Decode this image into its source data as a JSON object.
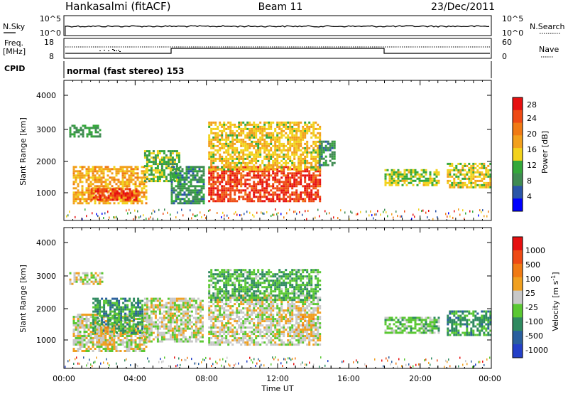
{
  "header": {
    "station": "Hankasalmi (fitACF)",
    "beam": "Beam 11",
    "date": "23/Dec/2011"
  },
  "aux_panels": {
    "nsky_label": "N.Sky",
    "nsky_ticks": [
      "10^5",
      "10^0"
    ],
    "nsearch_label": "N.Search",
    "nsearch_ticks": [
      "10^5",
      "10^0"
    ],
    "freq_label_1": "Freq.",
    "freq_label_2": "[MHz]",
    "freq_ticks": [
      "18",
      "8"
    ],
    "nave_label": "Nave",
    "nave_ticks": [
      "60",
      "0"
    ],
    "cpid_label": "CPID",
    "cpid_value": "normal (fast stereo) 153"
  },
  "power_panel": {
    "ylabel": "Slant Range [km]",
    "yticks": [
      "4000",
      "3000",
      "2000",
      "1000"
    ],
    "colorbar_label": "Power [dB]",
    "colorbar_ticks": [
      "28",
      "24",
      "20",
      "16",
      "12",
      "8",
      "4"
    ],
    "colors": [
      "#0000ff",
      "#2a55a8",
      "#3f8b52",
      "#34a83a",
      "#f2d21c",
      "#f2a01c",
      "#f07a14",
      "#ee4a14",
      "#e61010"
    ]
  },
  "velocity_panel": {
    "ylabel": "Slant Range [km]",
    "yticks": [
      "4000",
      "3000",
      "2000",
      "1000"
    ],
    "colorbar_label": "Velocity [m s^-1]",
    "colorbar_ticks": [
      "1000",
      "500",
      "100",
      "25",
      "-25",
      "-100",
      "-500",
      "-1000"
    ],
    "colors": [
      "#2440c8",
      "#2a5f9e",
      "#2f8a60",
      "#5ac832",
      "#c8c8c8",
      "#f0a020",
      "#f07a14",
      "#ee4a14",
      "#e61010"
    ]
  },
  "xaxis": {
    "label": "Time UT",
    "ticks": [
      "00:00",
      "04:00",
      "08:00",
      "12:00",
      "16:00",
      "20:00",
      "00:00"
    ]
  },
  "chart_data": [
    {
      "type": "heatmap",
      "title": "Power [dB]",
      "xlabel": "Time UT",
      "ylabel": "Slant Range [km]",
      "xlim": [
        0,
        24
      ],
      "ylim": [
        180,
        4600
      ],
      "color_scale": [
        0,
        30
      ],
      "echo_regions": [
        {
          "t": [
            0.5,
            4.6
          ],
          "range": [
            700,
            1900
          ],
          "value": 18
        },
        {
          "t": [
            1.5,
            4.2
          ],
          "range": [
            800,
            1200
          ],
          "value": 26
        },
        {
          "t": [
            0.3,
            2.0
          ],
          "range": [
            2800,
            3200
          ],
          "value": 10
        },
        {
          "t": [
            4.5,
            6.5
          ],
          "range": [
            1400,
            2400
          ],
          "value": 12
        },
        {
          "t": [
            6.0,
            7.8
          ],
          "range": [
            700,
            1900
          ],
          "value": 9
        },
        {
          "t": [
            8.1,
            14.4
          ],
          "range": [
            800,
            1900
          ],
          "value": 26
        },
        {
          "t": [
            8.1,
            14.4
          ],
          "range": [
            1800,
            3300
          ],
          "value": 16
        },
        {
          "t": [
            14.3,
            15.2
          ],
          "range": [
            1900,
            2700
          ],
          "value": 9
        },
        {
          "t": [
            18.0,
            21.0
          ],
          "range": [
            1300,
            1800
          ],
          "value": 14
        },
        {
          "t": [
            21.5,
            24.0
          ],
          "range": [
            1200,
            2000
          ],
          "value": 15
        }
      ]
    },
    {
      "type": "heatmap",
      "title": "Velocity [m s^-1]",
      "xlabel": "Time UT",
      "ylabel": "Slant Range [km]",
      "xlim": [
        0,
        24
      ],
      "ylim": [
        180,
        4600
      ],
      "color_scale": [
        -1000,
        1000
      ],
      "echo_regions": [
        {
          "t": [
            0.3,
            2.2
          ],
          "range": [
            2800,
            3200
          ],
          "value": 0
        },
        {
          "t": [
            0.5,
            4.6
          ],
          "range": [
            700,
            1900
          ],
          "value": 0
        },
        {
          "t": [
            1.6,
            4.4
          ],
          "range": [
            1300,
            2400
          ],
          "value": -400
        },
        {
          "t": [
            1.8,
            2.8
          ],
          "range": [
            900,
            1500
          ],
          "value": 150
        },
        {
          "t": [
            4.5,
            7.8
          ],
          "range": [
            1000,
            2400
          ],
          "value": 0
        },
        {
          "t": [
            8.1,
            14.4
          ],
          "range": [
            900,
            2500
          ],
          "value": 0
        },
        {
          "t": [
            8.1,
            14.4
          ],
          "range": [
            2300,
            3300
          ],
          "value": -300
        },
        {
          "t": [
            13.0,
            14.0
          ],
          "range": [
            1200,
            1900
          ],
          "value": 150
        },
        {
          "t": [
            18.0,
            21.0
          ],
          "range": [
            1300,
            1800
          ],
          "value": -200
        },
        {
          "t": [
            21.5,
            24.0
          ],
          "range": [
            1200,
            2000
          ],
          "value": -400
        }
      ]
    }
  ]
}
